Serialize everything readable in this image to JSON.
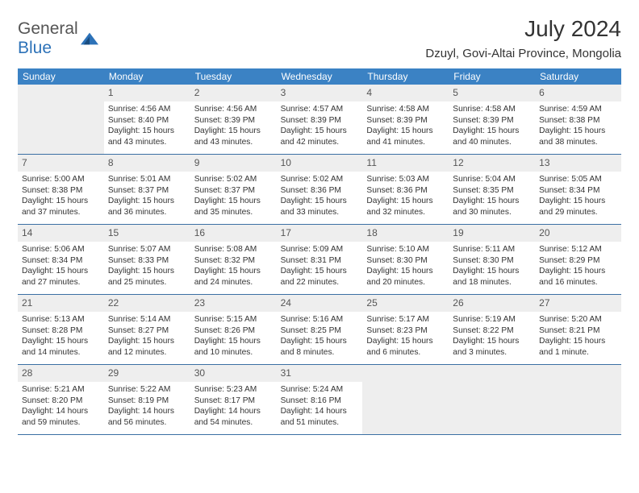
{
  "logo": {
    "gray": "General",
    "blue": "Blue"
  },
  "title": "July 2024",
  "location": "Dzuyl, Govi-Altai Province, Mongolia",
  "accent_color": "#3b82c4",
  "rule_color": "#3b6fa3",
  "stripe_color": "#eeeeee",
  "weekdays": [
    "Sunday",
    "Monday",
    "Tuesday",
    "Wednesday",
    "Thursday",
    "Friday",
    "Saturday"
  ],
  "weeks": [
    [
      null,
      {
        "n": "1",
        "sr": "Sunrise: 4:56 AM",
        "ss": "Sunset: 8:40 PM",
        "dl": "Daylight: 15 hours and 43 minutes."
      },
      {
        "n": "2",
        "sr": "Sunrise: 4:56 AM",
        "ss": "Sunset: 8:39 PM",
        "dl": "Daylight: 15 hours and 43 minutes."
      },
      {
        "n": "3",
        "sr": "Sunrise: 4:57 AM",
        "ss": "Sunset: 8:39 PM",
        "dl": "Daylight: 15 hours and 42 minutes."
      },
      {
        "n": "4",
        "sr": "Sunrise: 4:58 AM",
        "ss": "Sunset: 8:39 PM",
        "dl": "Daylight: 15 hours and 41 minutes."
      },
      {
        "n": "5",
        "sr": "Sunrise: 4:58 AM",
        "ss": "Sunset: 8:39 PM",
        "dl": "Daylight: 15 hours and 40 minutes."
      },
      {
        "n": "6",
        "sr": "Sunrise: 4:59 AM",
        "ss": "Sunset: 8:38 PM",
        "dl": "Daylight: 15 hours and 38 minutes."
      }
    ],
    [
      {
        "n": "7",
        "sr": "Sunrise: 5:00 AM",
        "ss": "Sunset: 8:38 PM",
        "dl": "Daylight: 15 hours and 37 minutes."
      },
      {
        "n": "8",
        "sr": "Sunrise: 5:01 AM",
        "ss": "Sunset: 8:37 PM",
        "dl": "Daylight: 15 hours and 36 minutes."
      },
      {
        "n": "9",
        "sr": "Sunrise: 5:02 AM",
        "ss": "Sunset: 8:37 PM",
        "dl": "Daylight: 15 hours and 35 minutes."
      },
      {
        "n": "10",
        "sr": "Sunrise: 5:02 AM",
        "ss": "Sunset: 8:36 PM",
        "dl": "Daylight: 15 hours and 33 minutes."
      },
      {
        "n": "11",
        "sr": "Sunrise: 5:03 AM",
        "ss": "Sunset: 8:36 PM",
        "dl": "Daylight: 15 hours and 32 minutes."
      },
      {
        "n": "12",
        "sr": "Sunrise: 5:04 AM",
        "ss": "Sunset: 8:35 PM",
        "dl": "Daylight: 15 hours and 30 minutes."
      },
      {
        "n": "13",
        "sr": "Sunrise: 5:05 AM",
        "ss": "Sunset: 8:34 PM",
        "dl": "Daylight: 15 hours and 29 minutes."
      }
    ],
    [
      {
        "n": "14",
        "sr": "Sunrise: 5:06 AM",
        "ss": "Sunset: 8:34 PM",
        "dl": "Daylight: 15 hours and 27 minutes."
      },
      {
        "n": "15",
        "sr": "Sunrise: 5:07 AM",
        "ss": "Sunset: 8:33 PM",
        "dl": "Daylight: 15 hours and 25 minutes."
      },
      {
        "n": "16",
        "sr": "Sunrise: 5:08 AM",
        "ss": "Sunset: 8:32 PM",
        "dl": "Daylight: 15 hours and 24 minutes."
      },
      {
        "n": "17",
        "sr": "Sunrise: 5:09 AM",
        "ss": "Sunset: 8:31 PM",
        "dl": "Daylight: 15 hours and 22 minutes."
      },
      {
        "n": "18",
        "sr": "Sunrise: 5:10 AM",
        "ss": "Sunset: 8:30 PM",
        "dl": "Daylight: 15 hours and 20 minutes."
      },
      {
        "n": "19",
        "sr": "Sunrise: 5:11 AM",
        "ss": "Sunset: 8:30 PM",
        "dl": "Daylight: 15 hours and 18 minutes."
      },
      {
        "n": "20",
        "sr": "Sunrise: 5:12 AM",
        "ss": "Sunset: 8:29 PM",
        "dl": "Daylight: 15 hours and 16 minutes."
      }
    ],
    [
      {
        "n": "21",
        "sr": "Sunrise: 5:13 AM",
        "ss": "Sunset: 8:28 PM",
        "dl": "Daylight: 15 hours and 14 minutes."
      },
      {
        "n": "22",
        "sr": "Sunrise: 5:14 AM",
        "ss": "Sunset: 8:27 PM",
        "dl": "Daylight: 15 hours and 12 minutes."
      },
      {
        "n": "23",
        "sr": "Sunrise: 5:15 AM",
        "ss": "Sunset: 8:26 PM",
        "dl": "Daylight: 15 hours and 10 minutes."
      },
      {
        "n": "24",
        "sr": "Sunrise: 5:16 AM",
        "ss": "Sunset: 8:25 PM",
        "dl": "Daylight: 15 hours and 8 minutes."
      },
      {
        "n": "25",
        "sr": "Sunrise: 5:17 AM",
        "ss": "Sunset: 8:23 PM",
        "dl": "Daylight: 15 hours and 6 minutes."
      },
      {
        "n": "26",
        "sr": "Sunrise: 5:19 AM",
        "ss": "Sunset: 8:22 PM",
        "dl": "Daylight: 15 hours and 3 minutes."
      },
      {
        "n": "27",
        "sr": "Sunrise: 5:20 AM",
        "ss": "Sunset: 8:21 PM",
        "dl": "Daylight: 15 hours and 1 minute."
      }
    ],
    [
      {
        "n": "28",
        "sr": "Sunrise: 5:21 AM",
        "ss": "Sunset: 8:20 PM",
        "dl": "Daylight: 14 hours and 59 minutes."
      },
      {
        "n": "29",
        "sr": "Sunrise: 5:22 AM",
        "ss": "Sunset: 8:19 PM",
        "dl": "Daylight: 14 hours and 56 minutes."
      },
      {
        "n": "30",
        "sr": "Sunrise: 5:23 AM",
        "ss": "Sunset: 8:17 PM",
        "dl": "Daylight: 14 hours and 54 minutes."
      },
      {
        "n": "31",
        "sr": "Sunrise: 5:24 AM",
        "ss": "Sunset: 8:16 PM",
        "dl": "Daylight: 14 hours and 51 minutes."
      },
      null,
      null,
      null
    ]
  ]
}
